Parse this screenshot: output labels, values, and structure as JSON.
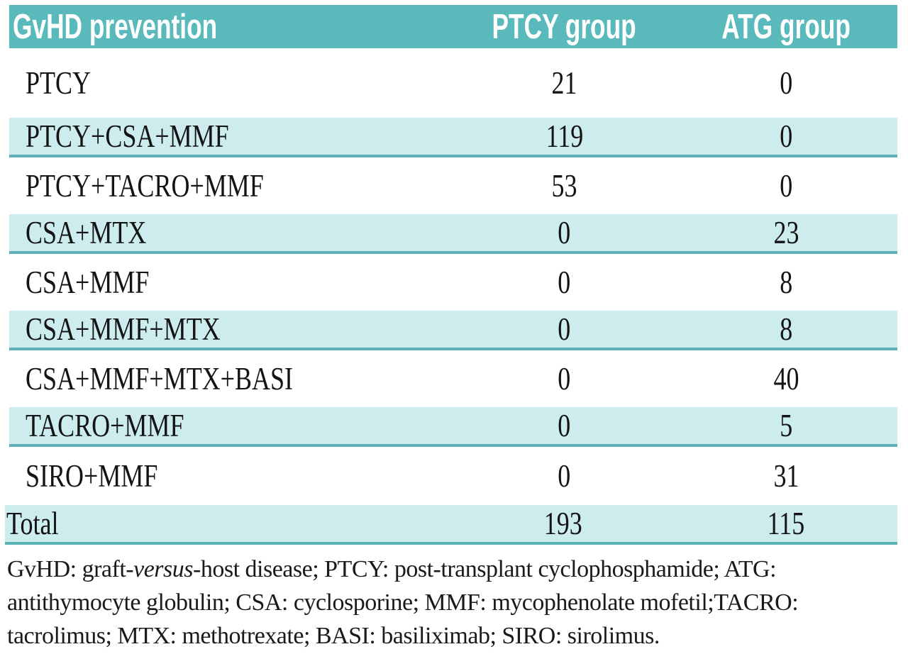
{
  "table": {
    "header": {
      "col1": "GvHD prevention",
      "col2": "PTCY group",
      "col3": "ATG group"
    },
    "rows": [
      {
        "label": "PTCY",
        "ptcy": "21",
        "atg": "0"
      },
      {
        "label": "PTCY+CSA+MMF",
        "ptcy": "119",
        "atg": "0"
      },
      {
        "label": "PTCY+TACRO+MMF",
        "ptcy": "53",
        "atg": "0"
      },
      {
        "label": "CSA+MTX",
        "ptcy": "0",
        "atg": "23"
      },
      {
        "label": "CSA+MMF",
        "ptcy": "0",
        "atg": "8"
      },
      {
        "label": "CSA+MMF+MTX",
        "ptcy": "0",
        "atg": "8"
      },
      {
        "label": "CSA+MMF+MTX+BASI",
        "ptcy": "0",
        "atg": "40"
      },
      {
        "label": "TACRO+MMF",
        "ptcy": "0",
        "atg": "5"
      },
      {
        "label": "SIRO+MMF",
        "ptcy": "0",
        "atg": "31"
      }
    ],
    "total": {
      "label": "Total",
      "ptcy": "193",
      "atg": "115"
    }
  },
  "footnote": {
    "line1_pre": "GvHD: graft-",
    "line1_italic": "versus",
    "line1_post": "-host disease; PTCY: post-transplant cyclophosphamide; ATG:",
    "line2": "antithymocyte globulin; CSA: cyclosporine; MMF: mycophenolate mofetil;TACRO:",
    "line3": "tacrolimus; MTX: methotrexate; BASI: basiliximab; SIRO: sirolimus."
  },
  "colors": {
    "header_bg": "#5ab9bb",
    "header_text": "#ffffff",
    "shade_bg": "#cdeced",
    "shade_border": "#5bb1b3",
    "body_text": "#141414"
  },
  "chart_data": {
    "type": "table",
    "columns": [
      "GvHD prevention",
      "PTCY group",
      "ATG group"
    ],
    "rows": [
      [
        "PTCY",
        21,
        0
      ],
      [
        "PTCY+CSA+MMF",
        119,
        0
      ],
      [
        "PTCY+TACRO+MMF",
        53,
        0
      ],
      [
        "CSA+MTX",
        0,
        23
      ],
      [
        "CSA+MMF",
        0,
        8
      ],
      [
        "CSA+MMF+MTX",
        0,
        8
      ],
      [
        "CSA+MMF+MTX+BASI",
        0,
        40
      ],
      [
        "TACRO+MMF",
        0,
        5
      ],
      [
        "SIRO+MMF",
        0,
        31
      ],
      [
        "Total",
        193,
        115
      ]
    ],
    "footnote": "GvHD: graft-versus-host disease; PTCY: post-transplant cyclophosphamide; ATG: antithymocyte globulin; CSA: cyclosporine; MMF: mycophenolate mofetil;TACRO: tacrolimus; MTX: methotrexate; BASI: basiliximab; SIRO: sirolimus."
  }
}
